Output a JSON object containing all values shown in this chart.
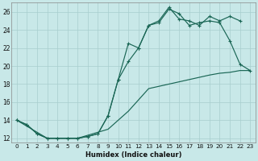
{
  "xlabel": "Humidex (Indice chaleur)",
  "bg_color": "#c8e8e8",
  "grid_color": "#a8cece",
  "line_color": "#1a6655",
  "xlim": [
    -0.5,
    23.5
  ],
  "ylim": [
    11.5,
    27.0
  ],
  "xticks": [
    0,
    1,
    2,
    3,
    4,
    5,
    6,
    7,
    8,
    9,
    10,
    11,
    12,
    13,
    14,
    15,
    16,
    17,
    18,
    19,
    20,
    21,
    22,
    23
  ],
  "yticks": [
    12,
    14,
    16,
    18,
    20,
    22,
    24,
    26
  ],
  "series1_x": [
    0,
    1,
    2,
    3,
    4,
    5,
    6,
    7,
    8,
    9,
    10,
    11,
    12,
    13,
    14,
    15,
    16,
    17,
    18,
    19,
    20,
    21,
    22,
    23
  ],
  "series1_y": [
    14.0,
    13.5,
    12.5,
    12.0,
    12.0,
    12.0,
    12.0,
    12.2,
    12.5,
    14.5,
    18.5,
    20.5,
    22.0,
    24.5,
    24.8,
    26.3,
    25.8,
    24.5,
    24.8,
    25.0,
    24.8,
    22.8,
    20.2,
    19.5
  ],
  "series2_x": [
    0,
    1,
    2,
    3,
    4,
    5,
    6,
    7,
    8,
    9,
    10,
    11,
    12,
    13,
    14,
    15,
    16,
    17,
    18,
    19,
    20,
    21,
    22
  ],
  "series2_y": [
    14.0,
    13.5,
    12.5,
    12.0,
    12.0,
    12.0,
    12.0,
    12.2,
    12.5,
    14.5,
    18.5,
    22.5,
    22.0,
    24.5,
    25.0,
    26.5,
    25.2,
    25.0,
    24.5,
    25.5,
    25.0,
    25.5,
    25.0
  ],
  "series3_x": [
    0,
    3,
    6,
    9,
    11,
    13,
    15,
    17,
    19,
    20,
    21,
    22,
    23
  ],
  "series3_y": [
    14.0,
    12.0,
    12.0,
    13.0,
    15.0,
    17.5,
    18.0,
    18.5,
    19.0,
    19.2,
    19.3,
    19.5,
    19.5
  ]
}
